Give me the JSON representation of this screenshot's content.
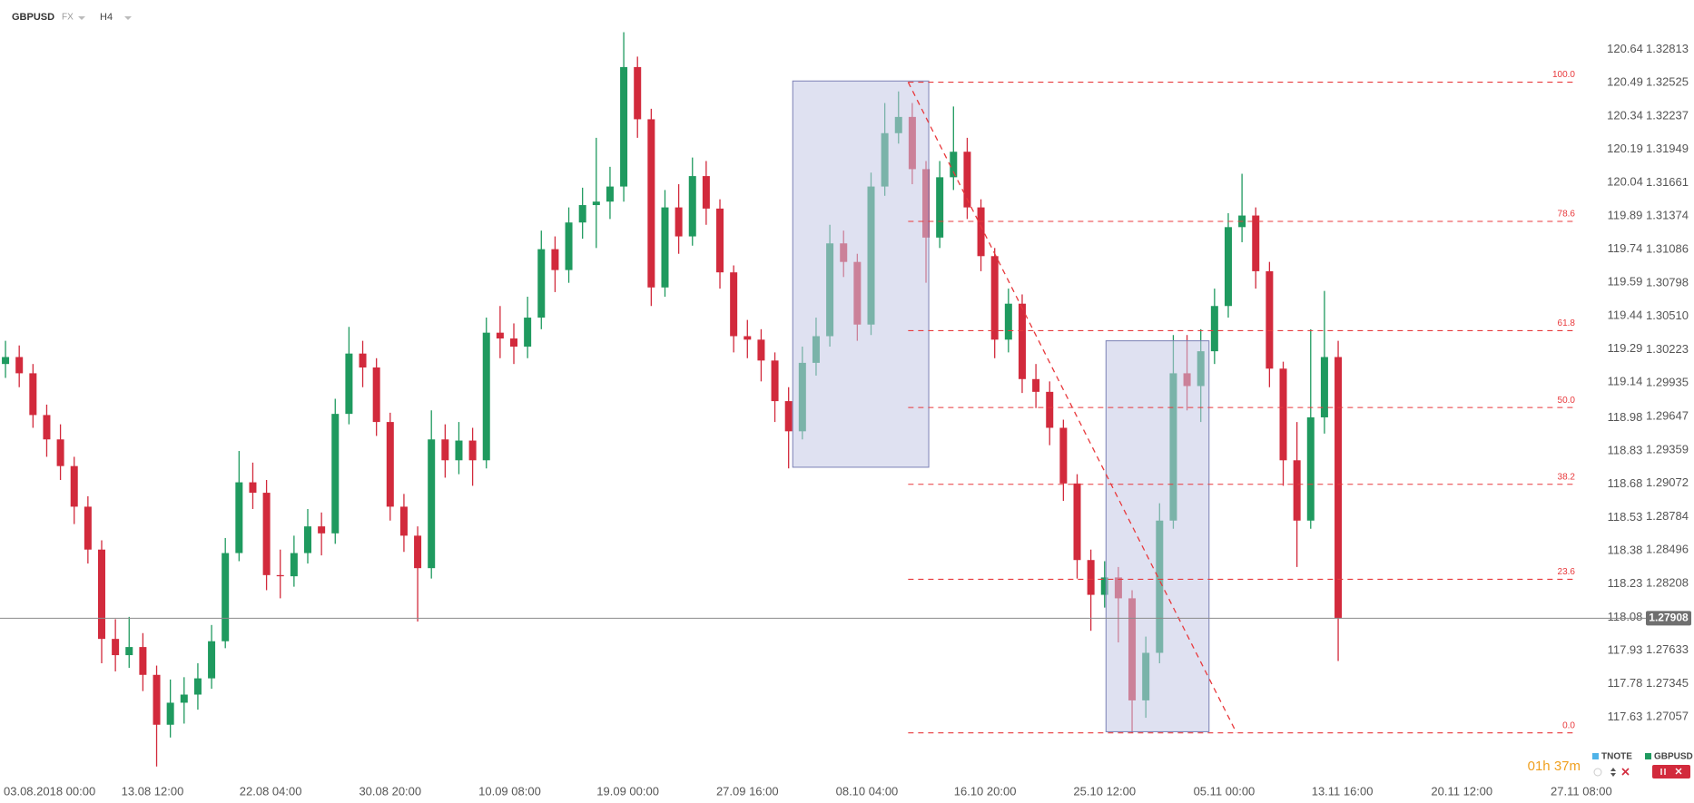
{
  "header": {
    "symbol": "GBPUSD",
    "market": "FX",
    "timeframe": "H4"
  },
  "chart_data": {
    "type": "candlestick",
    "series": [
      {
        "name": "TNOTE",
        "color": "#4fb3e8",
        "axis": "y2"
      },
      {
        "name": "GBPUSD",
        "color": "#1f9a5f",
        "up_color": "#1f9a5f",
        "down_color": "#d22a3c",
        "open": [
          1.301,
          1.3016,
          1.3002,
          1.2966,
          1.2945,
          1.2922,
          1.2887,
          1.285,
          1.2773,
          1.2759,
          1.2766,
          1.2742,
          1.2699,
          1.2718,
          1.2725,
          1.2739,
          1.2771,
          1.2847,
          1.2908,
          1.2899,
          1.2828,
          1.2827,
          1.2847,
          1.287,
          1.2864,
          1.2967,
          1.3019,
          1.3007,
          1.296,
          1.2887,
          1.2862,
          1.2834,
          1.2945,
          1.2927,
          1.2944,
          1.2927,
          1.3037,
          1.3032,
          1.3025,
          1.305,
          1.3109,
          1.3091,
          1.3132,
          1.3147,
          1.315,
          1.3163,
          1.3266,
          1.3221,
          1.3076,
          1.3145,
          1.312,
          1.3172,
          1.3144,
          1.3089,
          1.3034,
          1.3031,
          1.3013,
          1.2978,
          1.2952,
          1.3011,
          1.3034,
          1.3114,
          1.3098,
          1.3044,
          1.3163,
          1.3209,
          1.3223,
          1.3178,
          1.3119,
          1.3171,
          1.3193,
          1.3145,
          1.3103,
          1.3031,
          1.3062,
          1.2997,
          1.2986,
          1.2955,
          1.2907,
          1.2841,
          1.2811,
          1.2826,
          1.2808,
          1.272,
          1.2761,
          1.2875,
          1.3002,
          1.2991,
          1.3021,
          1.306,
          1.3128,
          1.3138,
          1.309,
          1.3006,
          1.2927,
          1.2875,
          1.2964,
          1.3016
        ],
        "high": [
          1.303,
          1.3026,
          1.301,
          1.2975,
          1.2958,
          1.293,
          1.2896,
          1.2858,
          1.279,
          1.2792,
          1.2778,
          1.275,
          1.2738,
          1.274,
          1.2752,
          1.2785,
          1.286,
          1.2935,
          1.2925,
          1.291,
          1.285,
          1.2862,
          1.2885,
          1.2882,
          1.298,
          1.3042,
          1.303,
          1.3015,
          1.2968,
          1.2898,
          1.287,
          1.297,
          1.2958,
          1.296,
          1.2955,
          1.305,
          1.306,
          1.3045,
          1.3068,
          1.3125,
          1.312,
          1.3145,
          1.3162,
          1.3205,
          1.318,
          1.3296,
          1.3275,
          1.323,
          1.316,
          1.3165,
          1.3188,
          1.3185,
          1.3152,
          1.3095,
          1.3048,
          1.304,
          1.302,
          1.299,
          1.3025,
          1.305,
          1.313,
          1.3125,
          1.3105,
          1.3175,
          1.3235,
          1.3245,
          1.3235,
          1.3185,
          1.3185,
          1.3232,
          1.3205,
          1.3152,
          1.311,
          1.3075,
          1.307,
          1.301,
          1.2995,
          1.2962,
          1.2915,
          1.285,
          1.284,
          1.2835,
          1.2815,
          1.2775,
          1.289,
          1.3035,
          1.3035,
          1.304,
          1.3075,
          1.314,
          1.3174,
          1.3145,
          1.3098,
          1.3012,
          1.296,
          1.304,
          1.3073,
          1.303
        ],
        "low": [
          1.2998,
          1.299,
          1.2955,
          1.293,
          1.291,
          1.2872,
          1.2838,
          1.2752,
          1.2745,
          1.2748,
          1.2728,
          1.2663,
          1.2688,
          1.27,
          1.2712,
          1.273,
          1.2765,
          1.284,
          1.2885,
          1.2815,
          1.2808,
          1.2818,
          1.2838,
          1.2845,
          1.2855,
          1.2958,
          1.299,
          1.2948,
          1.2875,
          1.2848,
          1.2788,
          1.2825,
          1.2912,
          1.2915,
          1.2905,
          1.292,
          1.3015,
          1.301,
          1.3015,
          1.304,
          1.3072,
          1.308,
          1.3118,
          1.311,
          1.3135,
          1.315,
          1.3205,
          1.306,
          1.3068,
          1.3105,
          1.3112,
          1.313,
          1.3075,
          1.302,
          1.3015,
          1.2995,
          1.296,
          1.292,
          1.2945,
          1.3,
          1.3025,
          1.3085,
          1.303,
          1.3035,
          1.3155,
          1.32,
          1.3165,
          1.308,
          1.311,
          1.316,
          1.3135,
          1.309,
          1.3015,
          1.302,
          1.2985,
          1.2972,
          1.294,
          1.2892,
          1.2825,
          1.278,
          1.28,
          1.277,
          1.2692,
          1.2705,
          1.2752,
          1.2868,
          1.297,
          1.296,
          1.301,
          1.305,
          1.3115,
          1.3075,
          1.299,
          1.2905,
          1.2835,
          1.2868,
          1.295,
          1.2754
        ],
        "close": [
          1.3016,
          1.3002,
          1.2966,
          1.2945,
          1.2922,
          1.2887,
          1.285,
          1.2773,
          1.2759,
          1.2766,
          1.2742,
          1.2699,
          1.2718,
          1.2725,
          1.2739,
          1.2771,
          1.2847,
          1.2908,
          1.2899,
          1.2828,
          1.2827,
          1.2847,
          1.287,
          1.2864,
          1.2967,
          1.3019,
          1.3007,
          1.296,
          1.2887,
          1.2862,
          1.2834,
          1.2945,
          1.2927,
          1.2944,
          1.2927,
          1.3037,
          1.3032,
          1.3025,
          1.305,
          1.3109,
          1.3091,
          1.3132,
          1.3147,
          1.315,
          1.3163,
          1.3266,
          1.3221,
          1.3076,
          1.3145,
          1.312,
          1.3172,
          1.3144,
          1.3089,
          1.3034,
          1.3031,
          1.3013,
          1.2978,
          1.2952,
          1.3011,
          1.3034,
          1.3114,
          1.3098,
          1.3044,
          1.3163,
          1.3209,
          1.3223,
          1.3178,
          1.3119,
          1.3171,
          1.3193,
          1.3145,
          1.3103,
          1.3031,
          1.3062,
          1.2997,
          1.2986,
          1.2955,
          1.2907,
          1.2841,
          1.2811,
          1.2826,
          1.2808,
          1.272,
          1.2761,
          1.2875,
          1.3002,
          1.2991,
          1.3021,
          1.306,
          1.3128,
          1.3138,
          1.309,
          1.3006,
          1.2927,
          1.2875,
          1.2964,
          1.3016,
          1.2791
        ]
      }
    ],
    "xlim": [
      -0.4,
      115.3
    ],
    "xticks": [
      {
        "value": 0.2,
        "label": "03.08.2018 00:00"
      },
      {
        "value": 10.7,
        "label": "13.08 12:00"
      },
      {
        "value": 19.3,
        "label": "22.08 04:00"
      },
      {
        "value": 28.0,
        "label": "30.08 20:00"
      },
      {
        "value": 36.7,
        "label": "10.09 08:00"
      },
      {
        "value": 45.3,
        "label": "19.09 00:00"
      },
      {
        "value": 54.0,
        "label": "27.09 16:00"
      },
      {
        "value": 62.7,
        "label": "08.10 04:00"
      },
      {
        "value": 71.3,
        "label": "16.10 20:00"
      },
      {
        "value": 80.0,
        "label": "25.10 12:00"
      },
      {
        "value": 88.7,
        "label": "05.11 00:00"
      },
      {
        "value": 97.3,
        "label": "13.11 16:00"
      },
      {
        "value": 106.0,
        "label": "20.11 12:00"
      },
      {
        "value": 114.7,
        "label": "27.11 08:00"
      }
    ],
    "ylim": [
      1.2655,
      1.3298
    ],
    "yticks": [
      1.32813,
      1.32525,
      1.32237,
      1.31949,
      1.31661,
      1.31374,
      1.31086,
      1.30798,
      {
        "value": 1.3051,
        "label": "1.30510"
      },
      1.30223,
      1.29935,
      1.29647,
      1.29359,
      1.29072,
      1.28784,
      1.28496,
      1.28208,
      1.27633,
      1.27345,
      1.27057
    ],
    "y2lim": [
      117.366,
      120.728
    ],
    "y2ticks": [
      120.64,
      120.49,
      120.34,
      120.19,
      120.04,
      119.89,
      119.74,
      119.59,
      119.44,
      119.29,
      119.14,
      118.98,
      118.83,
      118.68,
      118.53,
      118.38,
      118.23,
      118.08,
      117.93,
      117.78,
      117.63
    ],
    "current_price": 1.27908,
    "zones": [
      {
        "x": [
          57.3,
          67.2
        ],
        "y": [
          1.2921,
          1.3254
        ]
      },
      {
        "x": [
          80.1,
          87.6
        ],
        "y": [
          1.2693,
          1.303
        ]
      }
    ],
    "zone_color": "#c5c8e6",
    "fibonacci": {
      "color": "#e8393c",
      "start": 65.7,
      "end": 89.6,
      "high": 1.3253,
      "low": 1.2692,
      "levels": [
        {
          "value": 100,
          "label": "100.0"
        },
        78.6,
        61.8,
        {
          "value": 50,
          "label": "50.0"
        },
        38.2,
        23.6,
        {
          "value": 0,
          "label": "0.0"
        }
      ]
    },
    "countdown": "01h 37m"
  }
}
